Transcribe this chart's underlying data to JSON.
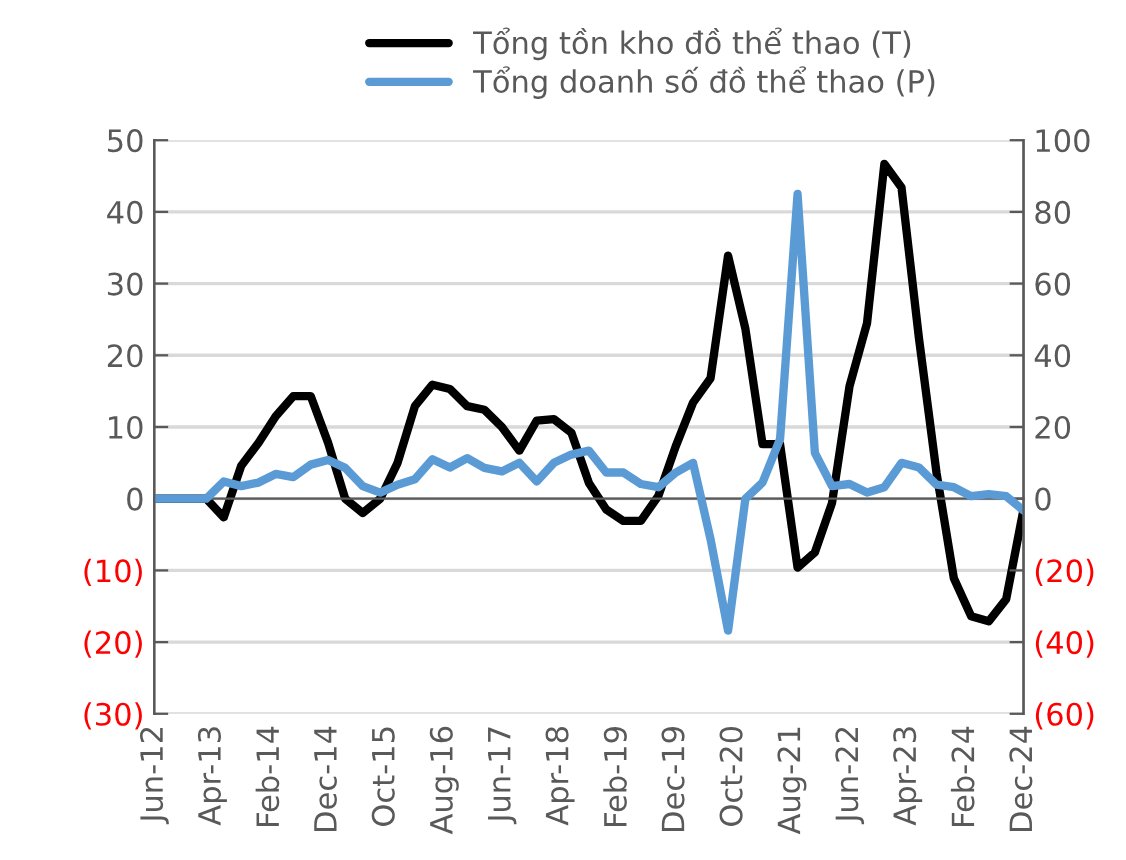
{
  "chart_data": {
    "type": "line",
    "legend": "top",
    "grid": "y",
    "line_style": "solid",
    "marker": "none",
    "x": [
      "2012-06",
      "2012-09",
      "2012-12",
      "2013-03",
      "2013-06",
      "2013-09",
      "2013-12",
      "2014-03",
      "2014-06",
      "2014-09",
      "2014-12",
      "2015-03",
      "2015-06",
      "2015-09",
      "2015-12",
      "2016-03",
      "2016-06",
      "2016-09",
      "2016-12",
      "2017-03",
      "2017-06",
      "2017-09",
      "2017-12",
      "2018-03",
      "2018-06",
      "2018-09",
      "2018-12",
      "2019-03",
      "2019-06",
      "2019-09",
      "2019-12",
      "2020-03",
      "2020-06",
      "2020-09",
      "2020-12",
      "2021-03",
      "2021-06",
      "2021-09",
      "2021-12",
      "2022-03",
      "2022-06",
      "2022-09",
      "2022-12",
      "2023-03",
      "2023-06",
      "2023-09",
      "2023-12",
      "2024-03",
      "2024-06",
      "2024-09",
      "2024-12"
    ],
    "series": [
      {
        "name": "Tổng tồn kho đồ thể thao (T)",
        "color": "#000000",
        "values": [
          0,
          0,
          0,
          0,
          -2.6,
          4.6,
          7.8,
          11.5,
          14.3,
          14.3,
          7.8,
          0,
          -2,
          0,
          5,
          12.9,
          15.9,
          15.3,
          12.9,
          12.4,
          10,
          6.7,
          10.9,
          11.1,
          9.2,
          2.2,
          -1.5,
          -3.1,
          -3.1,
          0.4,
          7.3,
          13.4,
          16.8,
          33.9,
          23.7,
          7.6,
          7.6,
          -9.6,
          -7.5,
          -0.6,
          15.7,
          24.5,
          46.7,
          43.4,
          22.3,
          3.6,
          -11.1,
          -16.4,
          -17.1,
          -14,
          -1.5
        ]
      },
      {
        "name": "Tổng doanh số đồ thể thao (P)",
        "color": "#5b9bd5",
        "axis": "y2",
        "values": [
          0,
          0,
          0,
          0,
          4.8,
          3.5,
          4.5,
          6.9,
          6,
          9.5,
          10.8,
          8.6,
          3.5,
          1.7,
          3.9,
          5.4,
          11,
          8.7,
          11.3,
          8.6,
          7.6,
          10,
          4.8,
          10,
          12.3,
          13.4,
          7.3,
          7.3,
          4.1,
          3.2,
          7.3,
          10,
          -11.3,
          -36.8,
          0,
          4.5,
          16.6,
          85,
          12.8,
          3.5,
          4.1,
          1.7,
          3.2,
          10,
          8.7,
          3.9,
          3.2,
          0.7,
          1.3,
          0.7,
          -3.3
        ]
      }
    ],
    "xlim": [
      "2012-06",
      "2024-12"
    ],
    "xticks": [
      {
        "value": "2012-06",
        "label": "Jun-12"
      },
      {
        "value": "2013-04",
        "label": "Apr-13"
      },
      {
        "value": "2014-02",
        "label": "Feb-14"
      },
      {
        "value": "2014-12",
        "label": "Dec-14"
      },
      {
        "value": "2015-10",
        "label": "Oct-15"
      },
      {
        "value": "2016-08",
        "label": "Aug-16"
      },
      {
        "value": "2017-06",
        "label": "Jun-17"
      },
      {
        "value": "2018-04",
        "label": "Apr-18"
      },
      {
        "value": "2019-02",
        "label": "Feb-19"
      },
      {
        "value": "2019-12",
        "label": "Dec-19"
      },
      {
        "value": "2020-10",
        "label": "Oct-20"
      },
      {
        "value": "2021-08",
        "label": "Aug-21"
      },
      {
        "value": "2022-06",
        "label": "Jun-22"
      },
      {
        "value": "2023-04",
        "label": "Apr-23"
      },
      {
        "value": "2024-02",
        "label": "Feb-24"
      },
      {
        "value": "2024-12",
        "label": "Dec-24"
      }
    ],
    "ylim": [
      -30,
      50
    ],
    "yticks": [
      {
        "value": -30,
        "label": "(30)"
      },
      {
        "value": -20,
        "label": "(20)"
      },
      {
        "value": -10,
        "label": "(10)"
      },
      0,
      10,
      20,
      30,
      40,
      50
    ],
    "y2lim": [
      -60,
      100
    ],
    "y2ticks": [
      {
        "value": -60,
        "label": "(60)"
      },
      {
        "value": -40,
        "label": "(40)"
      },
      {
        "value": -20,
        "label": "(20)"
      },
      0,
      20,
      40,
      60,
      80,
      100
    ]
  }
}
